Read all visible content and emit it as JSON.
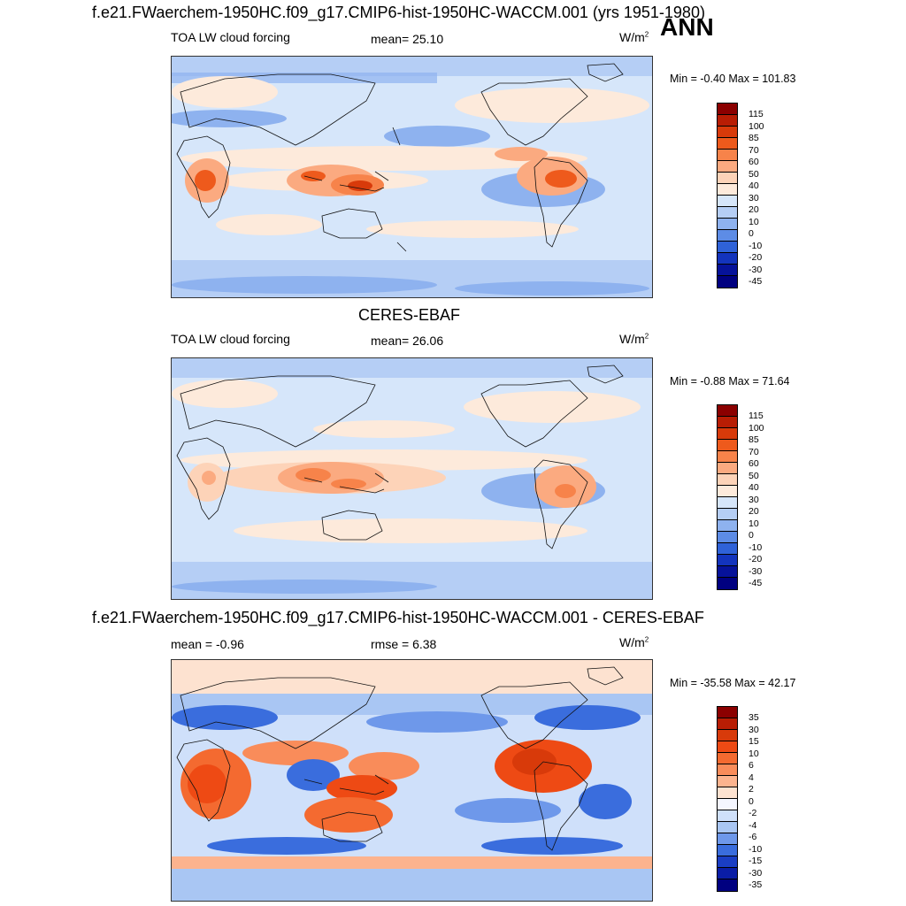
{
  "header": {
    "main_title": "f.e21.FWaerchem-1950HC.f09_g17.CMIP6-hist-1950HC-WACCM.001 (yrs 1951-1980)",
    "season": "ANN"
  },
  "panels": [
    {
      "label": "TOA LW cloud forcing",
      "mean_text": "mean=  25.10",
      "units": "W/m",
      "units_sup": "2",
      "minmax": "Min =  -0.40 Max = 101.83",
      "levels": [
        "115",
        "100",
        "85",
        "70",
        "60",
        "50",
        "40",
        "30",
        "20",
        "10",
        "0",
        "-10",
        "-20",
        "-30",
        "-45"
      ],
      "colors": [
        "#8b0000",
        "#b81d04",
        "#d83a0a",
        "#ee5a1c",
        "#f7834a",
        "#fbaa80",
        "#fdd3b8",
        "#fdeadb",
        "#d6e6fa",
        "#b5cef5",
        "#8eb2ef",
        "#5d8ce6",
        "#2f62d8",
        "#1334bd",
        "#06129a",
        "#000080"
      ]
    },
    {
      "title": "CERES-EBAF",
      "label": "TOA LW cloud forcing",
      "mean_text": "mean=  26.06",
      "units": "W/m",
      "units_sup": "2",
      "minmax": "Min =  -0.88 Max =  71.64",
      "levels": [
        "115",
        "100",
        "85",
        "70",
        "60",
        "50",
        "40",
        "30",
        "20",
        "10",
        "0",
        "-10",
        "-20",
        "-30",
        "-45"
      ],
      "colors": [
        "#8b0000",
        "#b81d04",
        "#d83a0a",
        "#ee5a1c",
        "#f7834a",
        "#fbaa80",
        "#fdd3b8",
        "#fdeadb",
        "#d6e6fa",
        "#b5cef5",
        "#8eb2ef",
        "#5d8ce6",
        "#2f62d8",
        "#1334bd",
        "#06129a",
        "#000080"
      ]
    },
    {
      "title": "f.e21.FWaerchem-1950HC.f09_g17.CMIP6-hist-1950HC-WACCM.001 - CERES-EBAF",
      "mean_text": "mean =  -0.96",
      "rmse_text": "rmse =   6.38",
      "units": "W/m",
      "units_sup": "2",
      "minmax": "Min = -35.58 Max =  42.17",
      "levels": [
        "35",
        "30",
        "15",
        "10",
        "6",
        "4",
        "2",
        "0",
        "-2",
        "-4",
        "-6",
        "-10",
        "-15",
        "-30",
        "-35"
      ],
      "colors": [
        "#8b0000",
        "#b81d04",
        "#d83a0a",
        "#ee4a14",
        "#f46a30",
        "#f98c5a",
        "#fcb38e",
        "#fde2d0",
        "#f4f6ff",
        "#cfe0fa",
        "#a9c6f3",
        "#6e98ea",
        "#3a6ddd",
        "#1a3ec4",
        "#0a1da6",
        "#000080"
      ]
    }
  ]
}
